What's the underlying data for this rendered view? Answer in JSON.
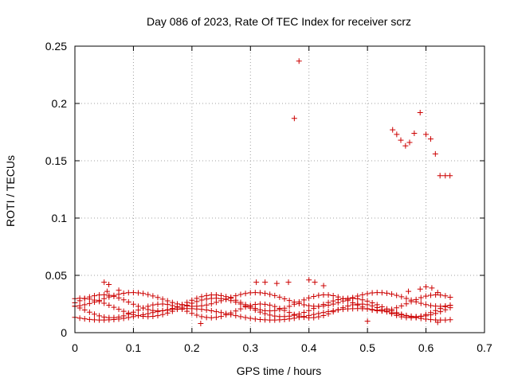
{
  "chart_data": {
    "type": "scatter",
    "title": "Day 086 of 2023, Rate Of TEC Index for receiver scrz",
    "xlabel": "GPS time / hours",
    "ylabel": "ROTI / TECUs",
    "xlim": [
      0,
      0.7
    ],
    "ylim": [
      0,
      0.25
    ],
    "xticks": [
      0,
      0.1,
      0.2,
      0.3,
      0.4,
      0.5,
      0.6,
      0.7
    ],
    "xtick_labels": [
      "0",
      "0.1",
      "0.2",
      "0.3",
      "0.4",
      "0.5",
      "0.6",
      "0.7"
    ],
    "yticks": [
      0,
      0.05,
      0.1,
      0.15,
      0.2,
      0.25
    ],
    "ytick_labels": [
      "0",
      "0.05",
      "0.1",
      "0.15",
      "0.2",
      "0.25"
    ],
    "grid": true,
    "marker": "+",
    "marker_color": "#cc0000",
    "band": {
      "x_start": 0.0,
      "x_end": 0.645,
      "x_step": 0.00833,
      "tracks": [
        {
          "base": 0.026,
          "amp": 0.007,
          "period": 0.19,
          "phase": 0.0
        },
        {
          "base": 0.022,
          "amp": 0.008,
          "period": 0.23,
          "phase": 1.3
        },
        {
          "base": 0.019,
          "amp": 0.006,
          "period": 0.17,
          "phase": 2.4
        },
        {
          "base": 0.016,
          "amp": 0.005,
          "period": 0.29,
          "phase": 3.7
        },
        {
          "base": 0.029,
          "amp": 0.006,
          "period": 0.21,
          "phase": 4.9
        }
      ],
      "spikes": [
        [
          0.05,
          0.044
        ],
        [
          0.058,
          0.042
        ],
        [
          0.31,
          0.044
        ],
        [
          0.325,
          0.044
        ],
        [
          0.345,
          0.043
        ],
        [
          0.365,
          0.044
        ],
        [
          0.4,
          0.046
        ],
        [
          0.41,
          0.044
        ],
        [
          0.425,
          0.041
        ],
        [
          0.57,
          0.036
        ],
        [
          0.59,
          0.038
        ],
        [
          0.6,
          0.04
        ],
        [
          0.61,
          0.039
        ],
        [
          0.62,
          0.035
        ],
        [
          0.055,
          0.036
        ],
        [
          0.075,
          0.037
        ],
        [
          0.215,
          0.008
        ],
        [
          0.5,
          0.01
        ],
        [
          0.62,
          0.009
        ]
      ]
    },
    "outliers": [
      [
        0.375,
        0.187
      ],
      [
        0.383,
        0.237
      ],
      [
        0.543,
        0.177
      ],
      [
        0.55,
        0.173
      ],
      [
        0.557,
        0.168
      ],
      [
        0.565,
        0.163
      ],
      [
        0.572,
        0.166
      ],
      [
        0.58,
        0.174
      ],
      [
        0.59,
        0.192
      ],
      [
        0.6,
        0.173
      ],
      [
        0.608,
        0.169
      ],
      [
        0.616,
        0.156
      ],
      [
        0.624,
        0.137
      ],
      [
        0.633,
        0.137
      ],
      [
        0.641,
        0.137
      ]
    ]
  }
}
